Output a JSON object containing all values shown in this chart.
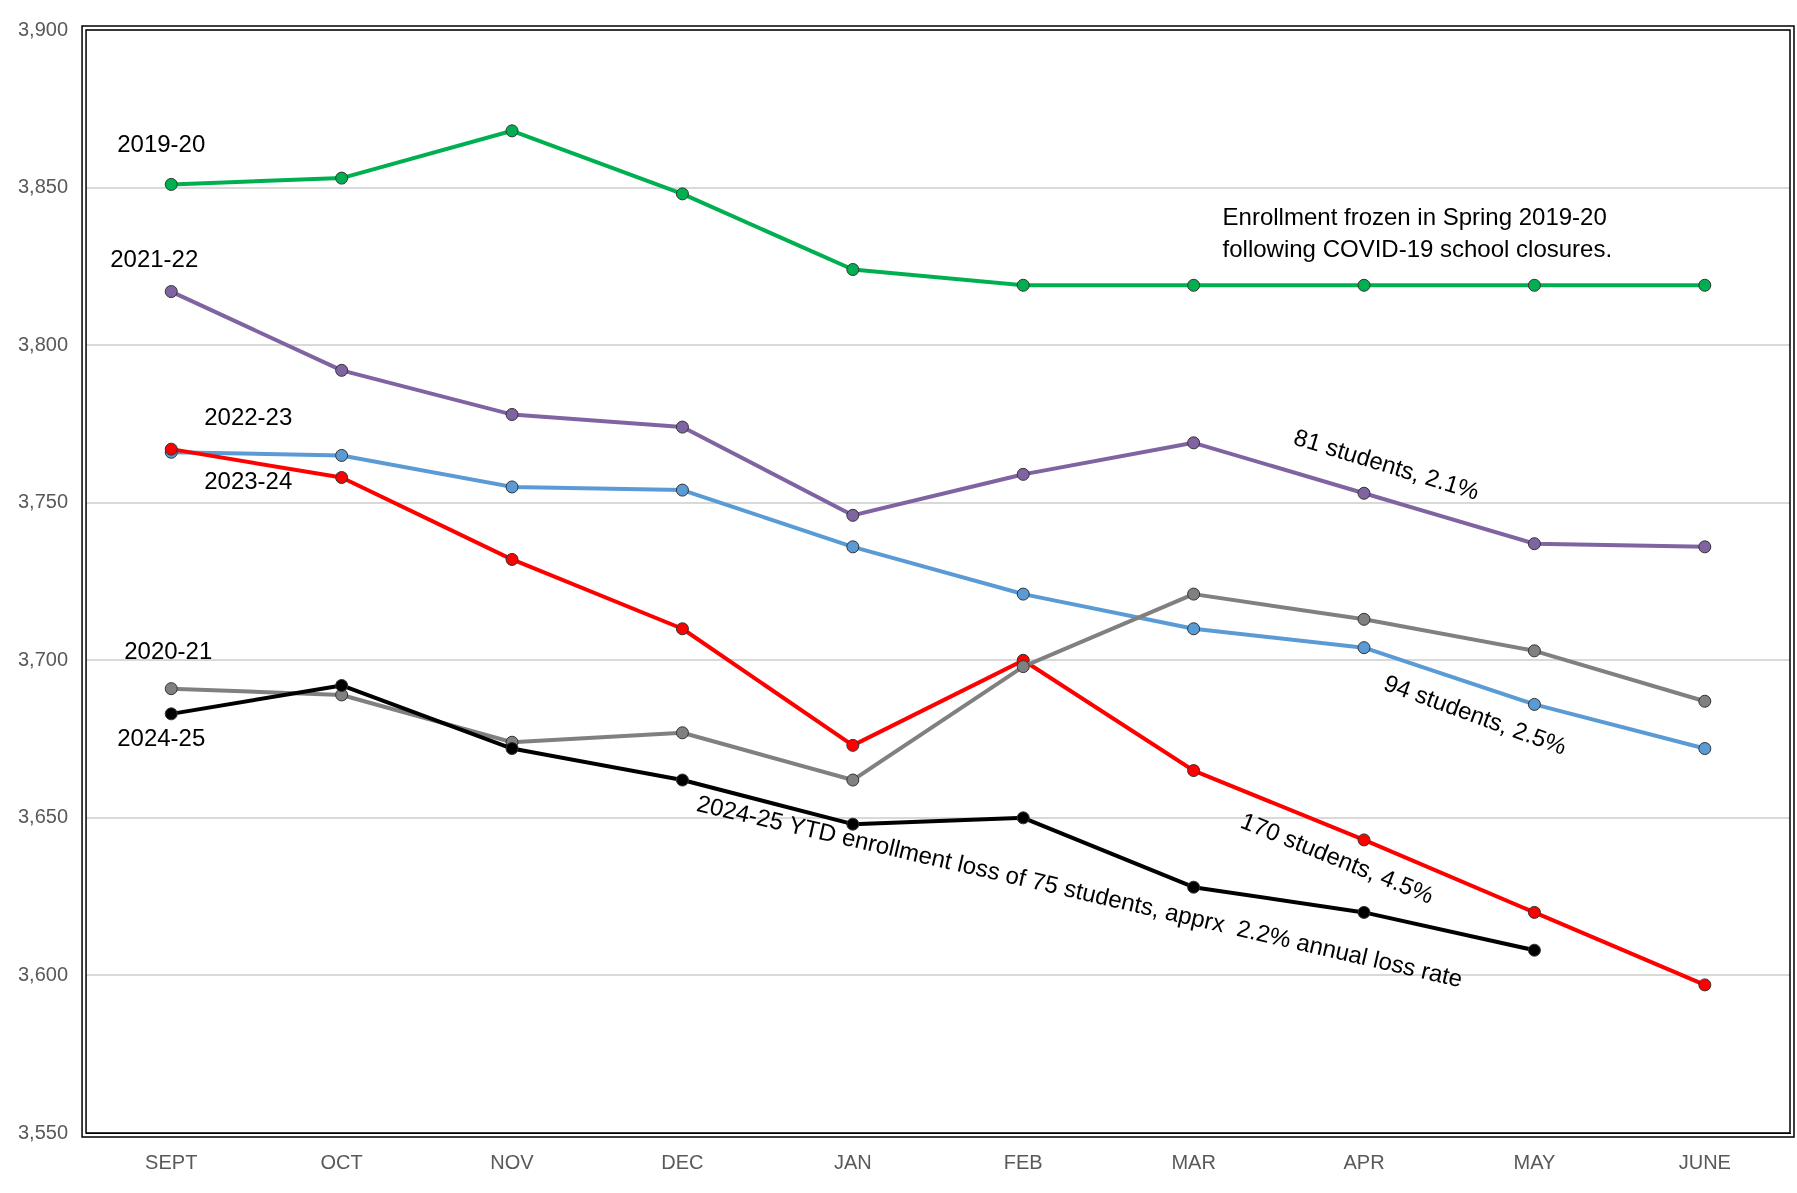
{
  "chart_data": {
    "type": "line",
    "categories": [
      "SEPT",
      "OCT",
      "NOV",
      "DEC",
      "JAN",
      "FEB",
      "MAR",
      "APR",
      "MAY",
      "JUNE"
    ],
    "series": [
      {
        "name": "2019-20",
        "color": "#00b050",
        "values": [
          3851,
          3853,
          3868,
          3848,
          3824,
          3819,
          3819,
          3819,
          3819,
          3819
        ]
      },
      {
        "name": "2021-22",
        "color": "#8064a2",
        "values": [
          3817,
          3792,
          3778,
          3774,
          3746,
          3759,
          3769,
          3753,
          3737,
          3736
        ]
      },
      {
        "name": "2022-23",
        "color": "#5b9bd5",
        "values": [
          3766,
          3765,
          3755,
          3754,
          3736,
          3721,
          3710,
          3704,
          3686,
          3672
        ]
      },
      {
        "name": "2023-24",
        "color": "#ff0000",
        "values": [
          3767,
          3758,
          3732,
          3710,
          3673,
          3700,
          3665,
          3643,
          3620,
          3597
        ]
      },
      {
        "name": "2020-21",
        "color": "#808080",
        "values": [
          3691,
          3689,
          3674,
          3677,
          3662,
          3698,
          3721,
          3713,
          3703,
          3687
        ]
      },
      {
        "name": "2024-25",
        "color": "#000000",
        "values": [
          3683,
          3692,
          3672,
          3662,
          3648,
          3650,
          3628,
          3620,
          3608,
          null
        ]
      }
    ],
    "ylim": [
      3550,
      3900
    ],
    "yticks": [
      {
        "value": 3550,
        "label": "3,550"
      },
      {
        "value": 3600,
        "label": "3,600"
      },
      {
        "value": 3650,
        "label": "3,650"
      },
      {
        "value": 3700,
        "label": "3,700"
      },
      {
        "value": 3750,
        "label": "3,750"
      },
      {
        "value": 3800,
        "label": "3,800"
      },
      {
        "value": 3850,
        "label": "3,850"
      },
      {
        "value": 3900,
        "label": "3,900"
      }
    ],
    "grid": "y",
    "legend": false,
    "marker": "circle",
    "line_style": "solid",
    "annotations": [
      "Enrollment frozen in Spring 2019-20\nfollowing COVID-19 school closures.",
      "81 students, 2.1%",
      "94 students, 2.5%",
      "170 students, 4.5%",
      "2024-25 YTD enrollment loss of 75 students, apprx  2.2% annual loss rate"
    ]
  }
}
